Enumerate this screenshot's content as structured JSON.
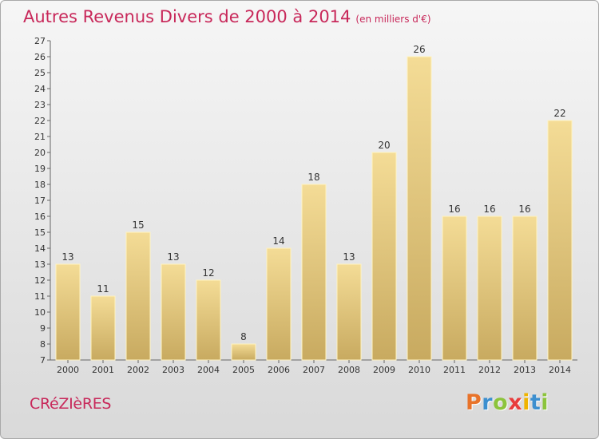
{
  "title": "Autres Revenus Divers de 2000 à 2014",
  "subtitle": "(en milliers d'€)",
  "location": "CRéZIèRES",
  "logo": {
    "letters": [
      "P",
      "r",
      "o",
      "x",
      "i",
      "t",
      "i"
    ],
    "colors": [
      "#e8732a",
      "#3c8fcf",
      "#8cc43c",
      "#e83c3c",
      "#f0b400",
      "#3c8fcf",
      "#8cc43c"
    ]
  },
  "colors": {
    "title": "#c8285a",
    "bar_top": "#f4dc96",
    "bar_bottom": "#c8aa60",
    "bar_edge": "#fff3c0",
    "axis": "#666666"
  },
  "chart_data": {
    "type": "bar",
    "categories": [
      "2000",
      "2001",
      "2002",
      "2003",
      "2004",
      "2005",
      "2006",
      "2007",
      "2008",
      "2009",
      "2010",
      "2011",
      "2012",
      "2013",
      "2014"
    ],
    "values": [
      13,
      11,
      15,
      13,
      12,
      8,
      14,
      18,
      13,
      20,
      26,
      16,
      16,
      16,
      22
    ],
    "ylim": [
      7,
      27
    ],
    "yticks": [
      "7",
      "8",
      "9",
      "10",
      "11",
      "12",
      "13",
      "14",
      "15",
      "16",
      "17",
      "18",
      "19",
      "20",
      "21",
      "22",
      "23",
      "24",
      "25",
      "26",
      "27"
    ],
    "grid": false
  }
}
